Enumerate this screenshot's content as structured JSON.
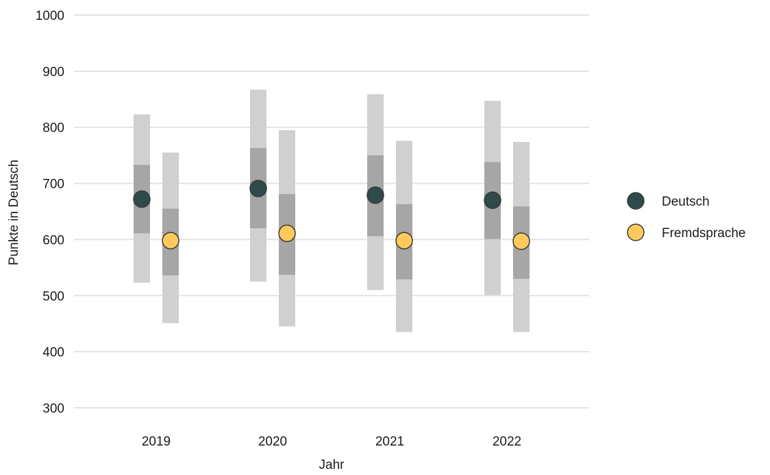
{
  "chart_data": {
    "type": "scatter",
    "xlabel": "Jahr",
    "ylabel": "Punkte in Deutsch",
    "ylim": [
      300,
      1000
    ],
    "y_ticks": [
      300,
      400,
      500,
      600,
      700,
      800,
      900,
      1000
    ],
    "categories": [
      "2019",
      "2020",
      "2021",
      "2022"
    ],
    "grid": "horizontal",
    "legend_position": "right",
    "range_colors": {
      "outer": "#d0d0d0",
      "inner": "#a6a6a6"
    },
    "series": [
      {
        "name": "Deutsch",
        "color": "#2e4a4a",
        "values": [
          672,
          691,
          679,
          670
        ],
        "outer_low": [
          523,
          525,
          510,
          501
        ],
        "outer_high": [
          823,
          867,
          859,
          847
        ],
        "inner_low": [
          611,
          620,
          606,
          601
        ],
        "inner_high": [
          733,
          763,
          750,
          738
        ]
      },
      {
        "name": "Fremdsprache",
        "color": "#ffc95c",
        "values": [
          598,
          611,
          598,
          597
        ],
        "outer_low": [
          451,
          445,
          435,
          435
        ],
        "outer_high": [
          755,
          795,
          776,
          774
        ],
        "inner_low": [
          536,
          537,
          529,
          530
        ],
        "inner_high": [
          655,
          681,
          663,
          659
        ]
      }
    ]
  }
}
